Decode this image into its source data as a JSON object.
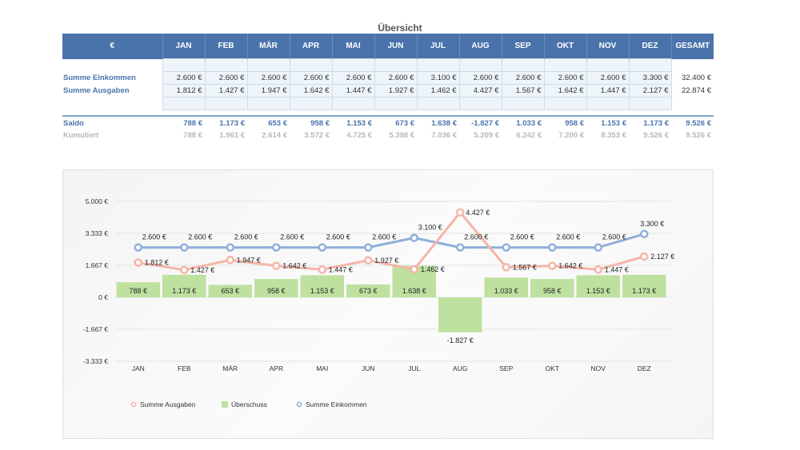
{
  "title": "Übersicht",
  "table": {
    "header": [
      "€",
      "JAN",
      "FEB",
      "MÄR",
      "APR",
      "MAI",
      "JUN",
      "JUL",
      "AUG",
      "SEP",
      "OKT",
      "NOV",
      "DEZ",
      "GESAMT"
    ],
    "rows": [
      {
        "label": "Summe Einkommen",
        "cells": [
          "2.600 €",
          "2.600 €",
          "2.600 €",
          "2.600 €",
          "2.600 €",
          "2.600 €",
          "3.100 €",
          "2.600 €",
          "2.600 €",
          "2.600 €",
          "2.600 €",
          "3.300 €",
          "32.400 €"
        ]
      },
      {
        "label": "Summe Ausgaben",
        "cells": [
          "1.812 €",
          "1.427 €",
          "1.947 €",
          "1.642 €",
          "1.447 €",
          "1.927 €",
          "1.462 €",
          "4.427 €",
          "1.567 €",
          "1.642 €",
          "1.447 €",
          "2.127 €",
          "22.874 €"
        ]
      }
    ],
    "saldo": {
      "label": "Saldo",
      "cells": [
        "788 €",
        "1.173 €",
        "653 €",
        "958 €",
        "1.153 €",
        "673 €",
        "1.638 €",
        "-1.827 €",
        "1.033 €",
        "958 €",
        "1.153 €",
        "1.173 €",
        "9.526 €"
      ]
    },
    "kumuliert": {
      "label": "Kumuliert",
      "cells": [
        "788 €",
        "1.961 €",
        "2.614 €",
        "3.572 €",
        "4.725 €",
        "5.398 €",
        "7.036 €",
        "5.209 €",
        "6.242 €",
        "7.200 €",
        "8.353 €",
        "9.526 €",
        "9.526 €"
      ]
    }
  },
  "chart_data": {
    "type": "bar",
    "categories": [
      "JAN",
      "FEB",
      "MÄR",
      "APR",
      "MAI",
      "JUN",
      "JUL",
      "AUG",
      "SEP",
      "OKT",
      "NOV",
      "DEZ"
    ],
    "y_ticks": [
      5000,
      3333,
      1667,
      0,
      -1667,
      -3333
    ],
    "y_tick_labels": [
      "5.000 €",
      "3.333 €",
      "1.667 €",
      "0 €",
      "-1.667 €",
      "-3.333 €"
    ],
    "ylim": [
      -3333,
      5000
    ],
    "grid": true,
    "legend_position": "bottom-left",
    "series": [
      {
        "name": "Summe Ausgaben",
        "kind": "line",
        "color": "#f4b5a8",
        "values": [
          1812,
          1427,
          1947,
          1642,
          1447,
          1927,
          1462,
          4427,
          1567,
          1642,
          1447,
          2127
        ],
        "labels": [
          "1.812 €",
          "1.427 €",
          "1.947 €",
          "1.642 €",
          "1.447 €",
          "1.927 €",
          "1.462 €",
          "4.427 €",
          "1.567 €",
          "1.642 €",
          "1.447 €",
          "2.127 €"
        ]
      },
      {
        "name": "Überschuss",
        "kind": "bar",
        "color": "#bfe1a0",
        "values": [
          788,
          1173,
          653,
          958,
          1153,
          673,
          1638,
          -1827,
          1033,
          958,
          1153,
          1173
        ],
        "labels": [
          "788 €",
          "1.173 €",
          "653 €",
          "958 €",
          "1.153 €",
          "673 €",
          "1.638 €",
          "-1.827 €",
          "1.033 €",
          "958 €",
          "1.153 €",
          "1.173 €"
        ]
      },
      {
        "name": "Summe Einkommen",
        "kind": "line",
        "color": "#8fb0d8",
        "values": [
          2600,
          2600,
          2600,
          2600,
          2600,
          2600,
          3100,
          2600,
          2600,
          2600,
          2600,
          3300
        ],
        "labels": [
          "2.600 €",
          "2.600 €",
          "2.600 €",
          "2.600 €",
          "2.600 €",
          "2.600 €",
          "3.100 €",
          "2.600 €",
          "2.600 €",
          "2.600 €",
          "2.600 €",
          "3.300 €"
        ]
      }
    ]
  }
}
